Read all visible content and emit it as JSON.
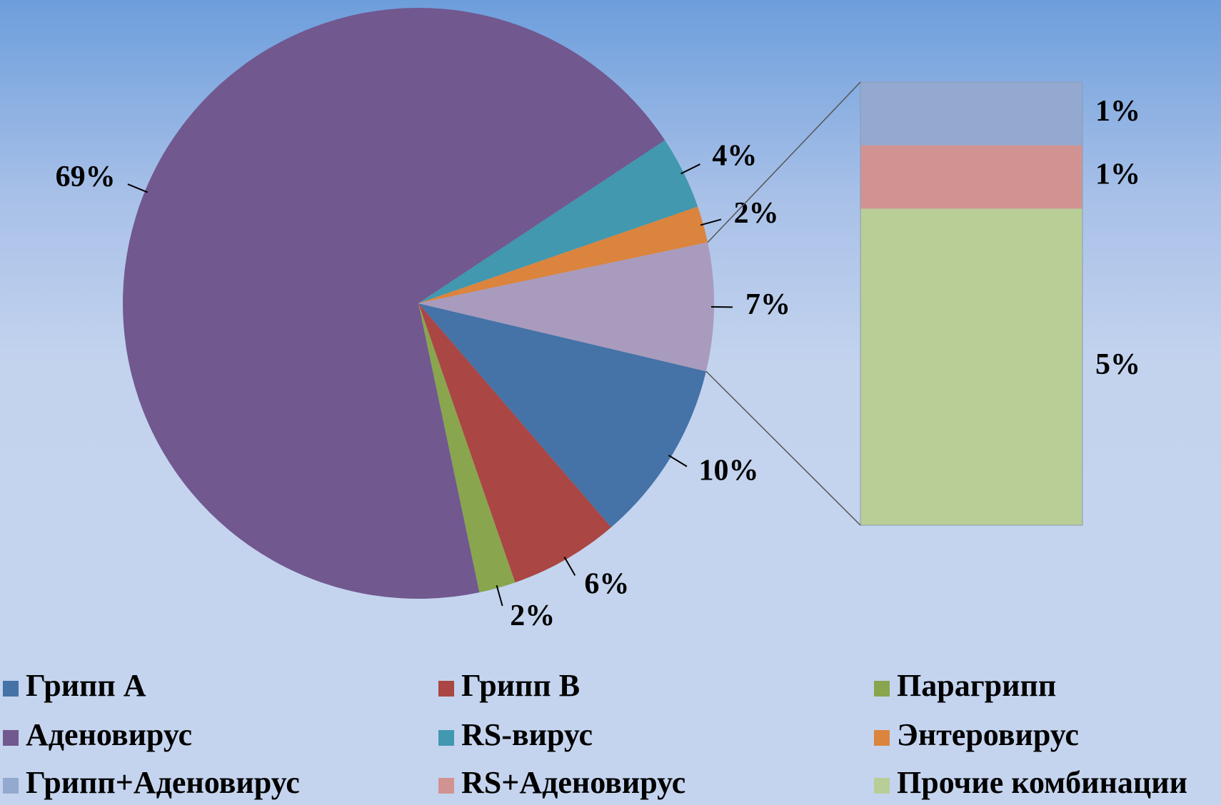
{
  "chart_data": {
    "type": "bar-of-pie",
    "categories": [
      "Грипп A",
      "Грипп B",
      "Парагрипп",
      "Аденовирус",
      "RS-вирус",
      "Энтеровирус",
      "Грипп+Аденовирус",
      "RS+Аденовирус",
      "Прочие комбинации"
    ],
    "values": [
      10,
      6,
      2,
      69,
      4,
      2,
      1,
      1,
      5
    ],
    "value_labels": [
      "10%",
      "6%",
      "2%",
      "69%",
      "4%",
      "2%",
      "1%",
      "1%",
      "5%"
    ],
    "colors": [
      "#4572a7",
      "#aa4643",
      "#89a54e",
      "#71588f",
      "#4198af",
      "#db843d",
      "#93a9cf",
      "#d19392",
      "#b9cd96"
    ],
    "composite_value": 7,
    "composite_label": "7%",
    "composite_color": "#a99bbd",
    "legend": "bottom"
  }
}
